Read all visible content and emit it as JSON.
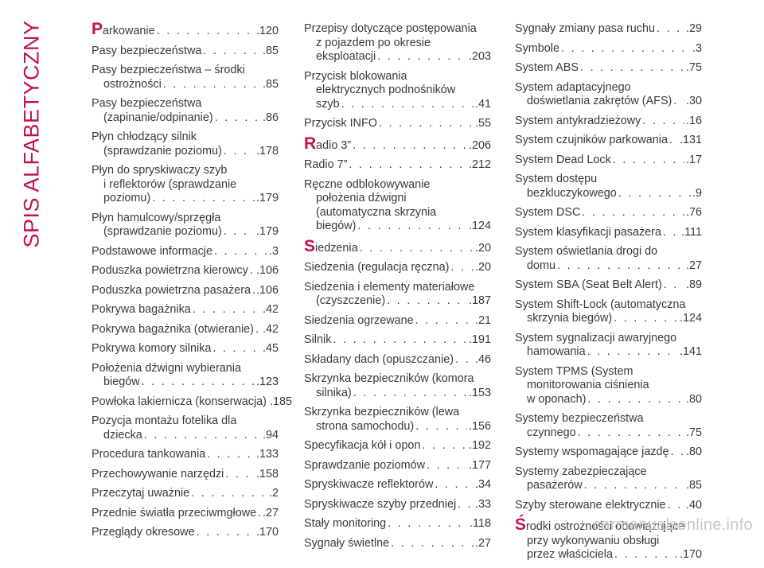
{
  "side_title": "SPIS ALFABETYCZNY",
  "watermark": "carmanualsonline.info",
  "columns": [
    [
      {
        "lines": [
          "Parkowanie"
        ],
        "page": "120",
        "initial": true
      },
      {
        "lines": [
          "Pasy bezpieczeństwa"
        ],
        "page": "85"
      },
      {
        "lines": [
          "Pasy bezpieczeństwa – środki",
          "ostrożności"
        ],
        "page": "85"
      },
      {
        "lines": [
          "Pasy bezpieczeństwa",
          "(zapinanie/odpinanie)"
        ],
        "page": "86"
      },
      {
        "lines": [
          "Płyn chłodzący silnik",
          "(sprawdzanie poziomu)"
        ],
        "page": "178"
      },
      {
        "lines": [
          "Płyn do spryskiwaczy szyb",
          "i reflektorów (sprawdzanie",
          "poziomu)"
        ],
        "page": "179"
      },
      {
        "lines": [
          "Płyn hamulcowy/sprzęgła",
          "(sprawdzanie poziomu)"
        ],
        "page": "179"
      },
      {
        "lines": [
          "Podstawowe informacje"
        ],
        "page": "3"
      },
      {
        "lines": [
          "Poduszka powietrzna kierowcy"
        ],
        "page": "106"
      },
      {
        "lines": [
          "Poduszka powietrzna pasażera"
        ],
        "page": "106"
      },
      {
        "lines": [
          "Pokrywa bagażnika"
        ],
        "page": "42"
      },
      {
        "lines": [
          "Pokrywa bagażnika (otwieranie)"
        ],
        "page": "42"
      },
      {
        "lines": [
          "Pokrywa komory silnika"
        ],
        "page": "45"
      },
      {
        "lines": [
          "Położenia dźwigni wybierania",
          "biegów"
        ],
        "page": "123"
      },
      {
        "lines": [
          "Powłoka lakiernicza (konserwacja)"
        ],
        "page": "185"
      },
      {
        "lines": [
          "Pozycja montażu fotelika dla",
          "dziecka"
        ],
        "page": "94"
      },
      {
        "lines": [
          "Procedura tankowania"
        ],
        "page": "133"
      },
      {
        "lines": [
          "Przechowywanie narzędzi"
        ],
        "page": "158"
      },
      {
        "lines": [
          "Przeczytaj uważnie"
        ],
        "page": "2"
      },
      {
        "lines": [
          "Przednie światła przeciwmgłowe"
        ],
        "page": "27"
      },
      {
        "lines": [
          "Przeglądy okresowe"
        ],
        "page": "170"
      }
    ],
    [
      {
        "lines": [
          "Przepisy dotyczące postępowania",
          "z pojazdem po okresie",
          "eksploatacji"
        ],
        "page": "203"
      },
      {
        "lines": [
          "Przycisk blokowania",
          "elektrycznych podnośników",
          "szyb"
        ],
        "page": "41"
      },
      {
        "lines": [
          "Przycisk INFO"
        ],
        "page": "55"
      },
      {
        "lines": [
          "Radio 3”"
        ],
        "page": "206",
        "initial": true
      },
      {
        "lines": [
          "Radio 7”"
        ],
        "page": "212"
      },
      {
        "lines": [
          "Ręczne odblokowywanie",
          "położenia dźwigni",
          "(automatyczna skrzynia",
          "biegów)"
        ],
        "page": "124"
      },
      {
        "lines": [
          "Siedzenia"
        ],
        "page": "20",
        "initial": true
      },
      {
        "lines": [
          "Siedzenia (regulacja ręczna)"
        ],
        "page": "20"
      },
      {
        "lines": [
          "Siedzenia i elementy materiałowe",
          "(czyszczenie)"
        ],
        "page": "187"
      },
      {
        "lines": [
          "Siedzenia ogrzewane"
        ],
        "page": "21"
      },
      {
        "lines": [
          "Silnik"
        ],
        "page": "191"
      },
      {
        "lines": [
          "Składany dach (opuszczanie)"
        ],
        "page": "46"
      },
      {
        "lines": [
          "Skrzynka bezpieczników (komora",
          "silnika)"
        ],
        "page": "153"
      },
      {
        "lines": [
          "Skrzynka bezpieczników (lewa",
          "strona samochodu)"
        ],
        "page": "156"
      },
      {
        "lines": [
          "Specyfikacja kół i opon"
        ],
        "page": "192"
      },
      {
        "lines": [
          "Sprawdzanie poziomów"
        ],
        "page": "177"
      },
      {
        "lines": [
          "Spryskiwacze reflektorów"
        ],
        "page": "34"
      },
      {
        "lines": [
          "Spryskiwacze szyby przedniej"
        ],
        "page": "33"
      },
      {
        "lines": [
          "Stały monitoring"
        ],
        "page": "118"
      },
      {
        "lines": [
          "Sygnały świetlne"
        ],
        "page": "27"
      }
    ],
    [
      {
        "lines": [
          "Sygnały zmiany pasa ruchu"
        ],
        "page": "29"
      },
      {
        "lines": [
          "Symbole"
        ],
        "page": "3"
      },
      {
        "lines": [
          "System ABS"
        ],
        "page": "75"
      },
      {
        "lines": [
          "System adaptacyjnego",
          "doświetlania zakrętów (AFS)"
        ],
        "page": "30"
      },
      {
        "lines": [
          "System antykradzieżowy"
        ],
        "page": "16"
      },
      {
        "lines": [
          "System czujników parkowania"
        ],
        "page": "131"
      },
      {
        "lines": [
          "System Dead Lock"
        ],
        "page": "17"
      },
      {
        "lines": [
          "System dostępu",
          "bezkluczykowego"
        ],
        "page": "9"
      },
      {
        "lines": [
          "System DSC"
        ],
        "page": "76"
      },
      {
        "lines": [
          "System klasyfikacji pasażera"
        ],
        "page": "111"
      },
      {
        "lines": [
          "System oświetlania drogi do",
          "domu"
        ],
        "page": "27"
      },
      {
        "lines": [
          "System SBA (Seat Belt Alert)"
        ],
        "page": "89"
      },
      {
        "lines": [
          "System Shift-Lock (automatyczna",
          "skrzynia biegów)"
        ],
        "page": "124"
      },
      {
        "lines": [
          "System sygnalizacji awaryjnego",
          "hamowania"
        ],
        "page": "141"
      },
      {
        "lines": [
          "System TPMS (System",
          "monitorowania ciśnienia",
          "w oponach)"
        ],
        "page": "80"
      },
      {
        "lines": [
          "Systemy bezpieczeństwa",
          "czynnego"
        ],
        "page": "75"
      },
      {
        "lines": [
          "Systemy wspomagające jazdę"
        ],
        "page": "80"
      },
      {
        "lines": [
          "Systemy zabezpieczające",
          "pasażerów"
        ],
        "page": "85"
      },
      {
        "lines": [
          "Szyby sterowane elektrycznie"
        ],
        "page": "40"
      },
      {
        "lines": [
          "Środki ostrożności obowiązujące",
          "przy wykonywaniu obsługi",
          "przez właściciela"
        ],
        "page": "170",
        "initial": true
      }
    ]
  ]
}
